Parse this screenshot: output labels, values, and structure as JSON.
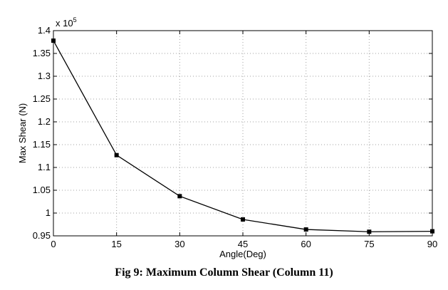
{
  "chart_data": {
    "type": "line",
    "title": "",
    "xlabel": "Angle(Deg)",
    "ylabel": "Max Shear (N)",
    "y_multiplier": {
      "base": "x 10",
      "exponent": "5"
    },
    "x": [
      0,
      15,
      30,
      45,
      60,
      75,
      90
    ],
    "series": [
      {
        "values": [
          1.378,
          1.127,
          1.037,
          0.986,
          0.964,
          0.959,
          0.96
        ]
      }
    ],
    "xlim": [
      0,
      90
    ],
    "ylim": [
      0.95,
      1.4
    ],
    "xticks": [
      "0",
      "15",
      "30",
      "45",
      "60",
      "75",
      "90"
    ],
    "yticks": [
      "0.95",
      "1",
      "1.05",
      "1.1",
      "1.15",
      "1.2",
      "1.25",
      "1.3",
      "1.35",
      "1.4"
    ],
    "grid": true,
    "line_color": "#000000",
    "marker": "square"
  },
  "caption": "Fig 9: Maximum Column Shear (Column 11)"
}
